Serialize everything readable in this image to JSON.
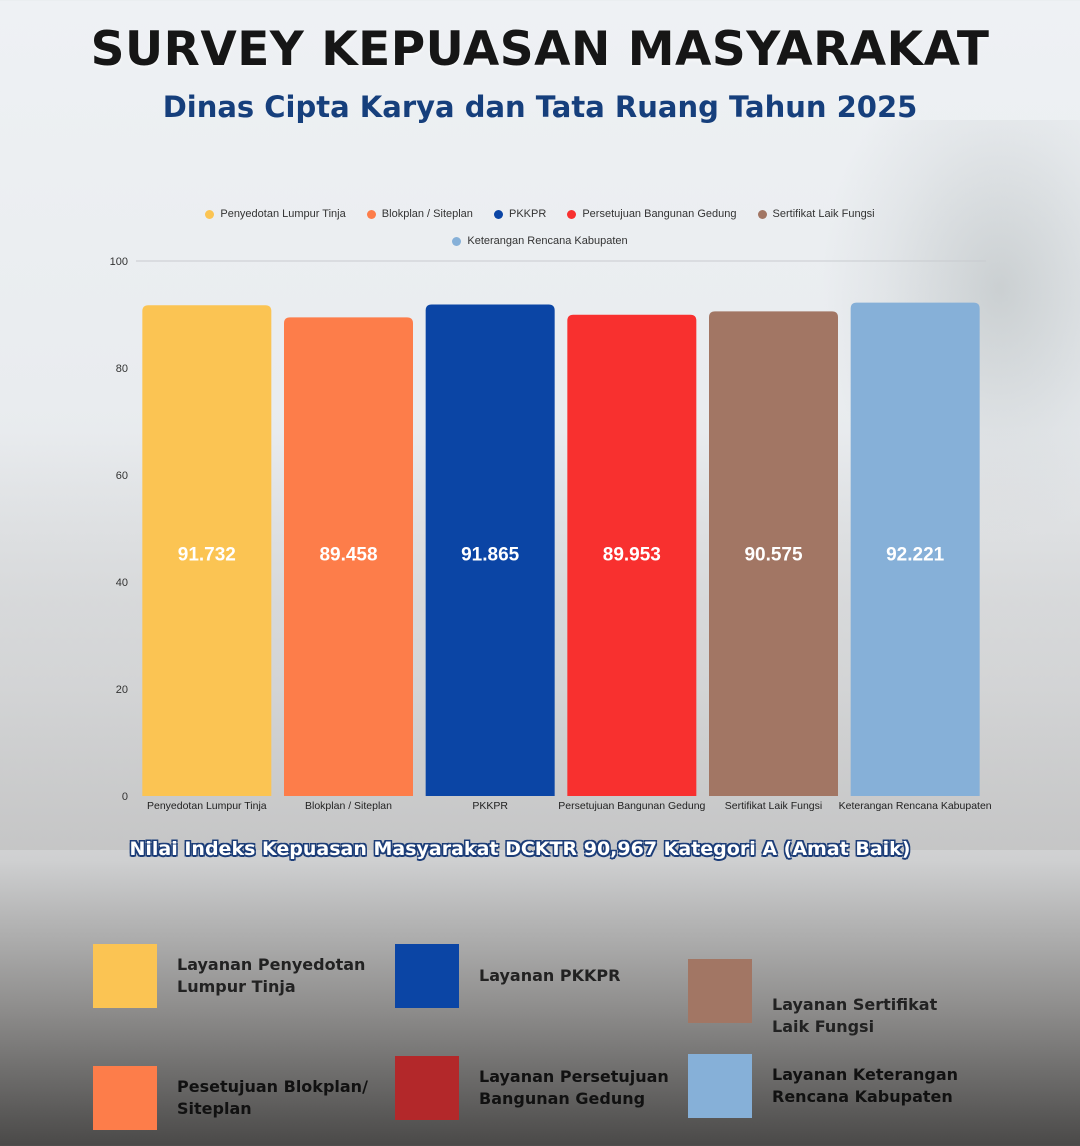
{
  "header": {
    "title": "SURVEY KEPUASAN MASYARAKAT",
    "subtitle": "Dinas Cipta Karya dan Tata Ruang Tahun 2025"
  },
  "chart_data": {
    "type": "bar",
    "categories": [
      "Penyedotan Lumpur Tinja",
      "Blokplan / Siteplan",
      "PKKPR",
      "Persetujuan Bangunan Gedung",
      "Sertifikat Laik Fungsi",
      "Keterangan Rencana Kabupaten"
    ],
    "values": [
      91.732,
      89.458,
      91.865,
      89.953,
      90.575,
      92.221
    ],
    "value_labels": [
      "91.732",
      "89.458",
      "91.865",
      "89.953",
      "90.575",
      "92.221"
    ],
    "colors": [
      "#fbc453",
      "#fd7d4a",
      "#0b45a5",
      "#f8302f",
      "#a27664",
      "#86b0d8"
    ],
    "legend": [
      "Penyedotan Lumpur Tinja",
      "Blokplan / Siteplan",
      "PKKPR",
      "Persetujuan Bangunan Gedung",
      "Sertifikat Laik Fungsi",
      "Keterangan Rencana Kabupaten"
    ],
    "legend_position": "top",
    "y_ticks": [
      "0",
      "20",
      "40",
      "60",
      "80",
      "100"
    ],
    "ylim": [
      0,
      100
    ],
    "grid": false
  },
  "index_summary": "Nilai Indeks Kepuasan Masyarakat DCKTR  90,967 Kategori A (Amat Baik)",
  "key_items": [
    {
      "label": "Layanan Penyedotan Lumpur Tinja",
      "color": "#fbc453"
    },
    {
      "label": "Layanan PKKPR",
      "color": "#0b45a5"
    },
    {
      "label": "Layanan Sertifikat Laik Fungsi",
      "color": "#a27664"
    },
    {
      "label": "Pesetujuan Blokplan/ Siteplan",
      "color": "#fd7d4a"
    },
    {
      "label": "Layanan Persetujuan Bangunan Gedung",
      "color": "#b3282a"
    },
    {
      "label": "Layanan Keterangan Rencana Kabupaten",
      "color": "#86b0d8"
    }
  ]
}
